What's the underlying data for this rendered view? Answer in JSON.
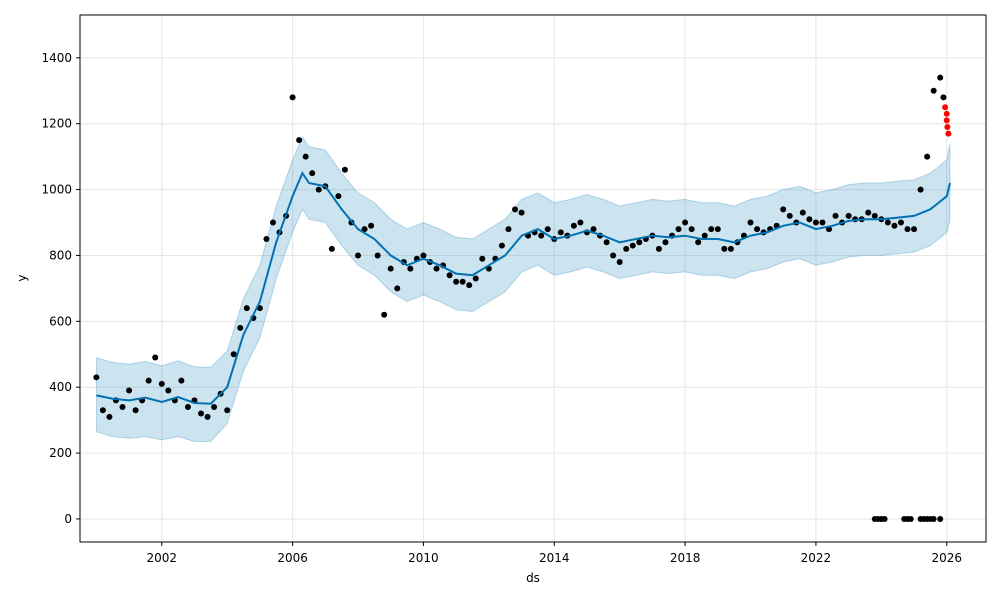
{
  "chart_data": {
    "type": "scatter",
    "xlabel": "ds",
    "ylabel": "y",
    "xlim": [
      1999.5,
      2027.2
    ],
    "ylim": [
      -70,
      1530
    ],
    "x_ticks": [
      2002,
      2006,
      2010,
      2014,
      2018,
      2022,
      2026
    ],
    "y_ticks": [
      0,
      200,
      400,
      600,
      800,
      1000,
      1200,
      1400
    ],
    "grid": true,
    "colors": {
      "observed": "#000000",
      "highlight": "#ff0000",
      "forecast": "#0072B2",
      "interval": "#0072B2"
    },
    "forecast": {
      "x": [
        2000.0,
        2000.5,
        2001.0,
        2001.5,
        2002.0,
        2002.5,
        2003.0,
        2003.5,
        2004.0,
        2004.5,
        2005.0,
        2005.5,
        2006.0,
        2006.3,
        2006.5,
        2007.0,
        2007.5,
        2008.0,
        2008.5,
        2009.0,
        2009.5,
        2010.0,
        2010.5,
        2011.0,
        2011.5,
        2012.0,
        2012.5,
        2013.0,
        2013.5,
        2014.0,
        2014.5,
        2015.0,
        2015.5,
        2016.0,
        2016.5,
        2017.0,
        2017.5,
        2018.0,
        2018.5,
        2019.0,
        2019.5,
        2020.0,
        2020.5,
        2021.0,
        2021.5,
        2022.0,
        2022.5,
        2023.0,
        2023.5,
        2024.0,
        2024.5,
        2025.0,
        2025.5,
        2026.0,
        2026.1
      ],
      "yhat": [
        375,
        365,
        360,
        368,
        355,
        370,
        352,
        350,
        400,
        560,
        660,
        840,
        980,
        1050,
        1020,
        1010,
        940,
        880,
        850,
        800,
        770,
        790,
        770,
        745,
        740,
        770,
        800,
        860,
        880,
        850,
        860,
        875,
        860,
        840,
        850,
        860,
        855,
        860,
        850,
        850,
        840,
        860,
        870,
        890,
        900,
        880,
        890,
        905,
        910,
        910,
        915,
        920,
        940,
        980,
        1020
      ],
      "lower": [
        265,
        250,
        245,
        250,
        240,
        250,
        235,
        235,
        290,
        450,
        550,
        730,
        870,
        940,
        910,
        900,
        830,
        770,
        740,
        690,
        660,
        680,
        660,
        635,
        630,
        660,
        690,
        750,
        770,
        740,
        750,
        765,
        750,
        730,
        740,
        750,
        745,
        750,
        740,
        740,
        730,
        750,
        760,
        780,
        790,
        770,
        780,
        795,
        800,
        800,
        805,
        810,
        830,
        870,
        905
      ],
      "upper": [
        490,
        475,
        470,
        478,
        465,
        480,
        462,
        460,
        510,
        670,
        770,
        950,
        1090,
        1160,
        1130,
        1120,
        1050,
        990,
        960,
        910,
        880,
        900,
        880,
        855,
        850,
        880,
        910,
        970,
        990,
        960,
        970,
        985,
        970,
        950,
        960,
        970,
        965,
        970,
        960,
        960,
        950,
        970,
        980,
        1000,
        1010,
        990,
        1000,
        1015,
        1020,
        1020,
        1025,
        1030,
        1050,
        1090,
        1140
      ]
    },
    "observed": {
      "x": [
        2000.0,
        2000.2,
        2000.4,
        2000.6,
        2000.8,
        2001.0,
        2001.2,
        2001.4,
        2001.6,
        2001.8,
        2002.0,
        2002.2,
        2002.4,
        2002.6,
        2002.8,
        2003.0,
        2003.2,
        2003.4,
        2003.6,
        2003.8,
        2004.0,
        2004.2,
        2004.4,
        2004.6,
        2004.8,
        2005.0,
        2005.2,
        2005.4,
        2005.6,
        2005.8,
        2006.0,
        2006.2,
        2006.4,
        2006.6,
        2006.8,
        2007.0,
        2007.2,
        2007.4,
        2007.6,
        2007.8,
        2008.0,
        2008.2,
        2008.4,
        2008.6,
        2008.8,
        2009.0,
        2009.2,
        2009.4,
        2009.6,
        2009.8,
        2010.0,
        2010.2,
        2010.4,
        2010.6,
        2010.8,
        2011.0,
        2011.2,
        2011.4,
        2011.6,
        2011.8,
        2012.0,
        2012.2,
        2012.4,
        2012.6,
        2012.8,
        2013.0,
        2013.2,
        2013.4,
        2013.6,
        2013.8,
        2014.0,
        2014.2,
        2014.4,
        2014.6,
        2014.8,
        2015.0,
        2015.2,
        2015.4,
        2015.6,
        2015.8,
        2016.0,
        2016.2,
        2016.4,
        2016.6,
        2016.8,
        2017.0,
        2017.2,
        2017.4,
        2017.6,
        2017.8,
        2018.0,
        2018.2,
        2018.4,
        2018.6,
        2018.8,
        2019.0,
        2019.2,
        2019.4,
        2019.6,
        2019.8,
        2020.0,
        2020.2,
        2020.4,
        2020.6,
        2020.8,
        2021.0,
        2021.2,
        2021.4,
        2021.6,
        2021.8,
        2022.0,
        2022.2,
        2022.4,
        2022.6,
        2022.8,
        2023.0,
        2023.2,
        2023.4,
        2023.6,
        2023.8,
        2024.0,
        2024.2,
        2024.4,
        2024.6,
        2024.8,
        2025.0,
        2025.2,
        2025.4,
        2025.6,
        2025.8,
        2025.9
      ],
      "y": [
        430,
        330,
        310,
        360,
        340,
        390,
        330,
        360,
        420,
        490,
        410,
        390,
        360,
        420,
        340,
        360,
        320,
        310,
        340,
        380,
        330,
        500,
        580,
        640,
        610,
        640,
        850,
        900,
        870,
        920,
        1280,
        1150,
        1100,
        1050,
        1000,
        1010,
        820,
        980,
        1060,
        900,
        800,
        880,
        890,
        800,
        620,
        760,
        700,
        780,
        760,
        790,
        800,
        780,
        760,
        770,
        740,
        720,
        720,
        710,
        730,
        790,
        760,
        790,
        830,
        880,
        940,
        930,
        860,
        870,
        860,
        880,
        850,
        870,
        860,
        890,
        900,
        870,
        880,
        860,
        840,
        800,
        780,
        820,
        830,
        840,
        850,
        860,
        820,
        840,
        860,
        880,
        900,
        880,
        840,
        860,
        880,
        880,
        820,
        820,
        840,
        860,
        900,
        880,
        870,
        880,
        890,
        940,
        920,
        900,
        930,
        910,
        900,
        900,
        880,
        920,
        900,
        920,
        910,
        910,
        930,
        920,
        910,
        900,
        890,
        900,
        880,
        880,
        1000,
        1100,
        1300,
        1340,
        1280
      ]
    },
    "zero_points": {
      "x": [
        2023.8,
        2023.9,
        2024.0,
        2024.1,
        2024.7,
        2024.8,
        2024.9,
        2025.2,
        2025.3,
        2025.4,
        2025.5,
        2025.6,
        2025.8
      ],
      "y": [
        0,
        0,
        0,
        0,
        0,
        0,
        0,
        0,
        0,
        0,
        0,
        0,
        0
      ]
    },
    "highlight_points": {
      "x": [
        2025.95,
        2026.0,
        2026.0,
        2026.02,
        2026.05
      ],
      "y": [
        1250,
        1230,
        1210,
        1190,
        1170
      ]
    }
  }
}
